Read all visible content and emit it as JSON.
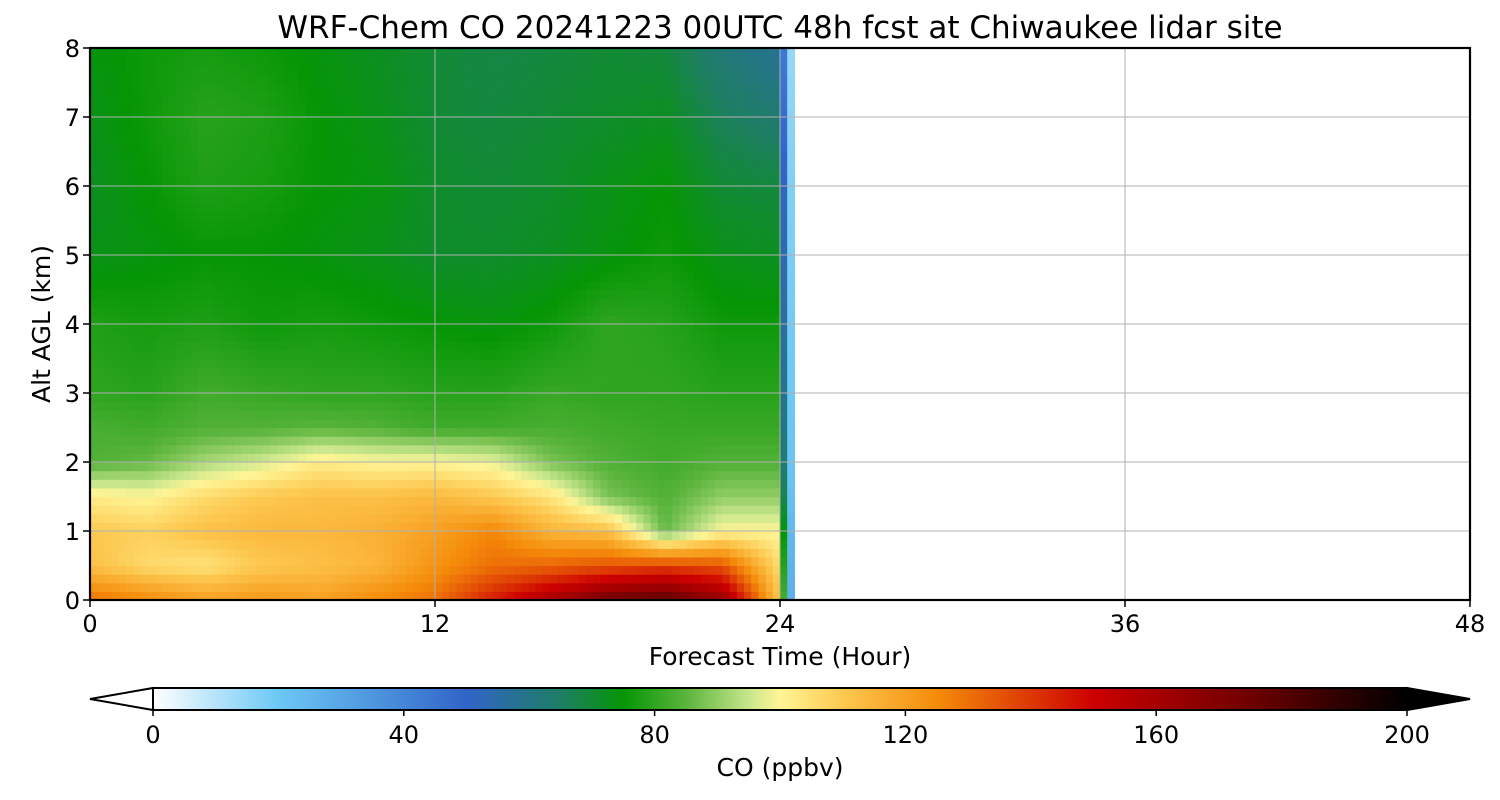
{
  "chart_data": {
    "type": "heatmap",
    "title": "WRF-Chem CO  20241223 00UTC 48h fcst at Chiwaukee lidar site",
    "xlabel": "Forecast Time (Hour)",
    "ylabel": "Alt AGL (km)",
    "xlim": [
      0,
      48
    ],
    "ylim": [
      0,
      8
    ],
    "x_ticks": [
      0,
      12,
      24,
      36,
      48
    ],
    "y_ticks": [
      0,
      1,
      2,
      3,
      4,
      5,
      6,
      7,
      8
    ],
    "grid": true,
    "data_extent_hours": [
      0,
      24.5
    ],
    "x": [
      0,
      2,
      4,
      6,
      8,
      10,
      12,
      14,
      16,
      18,
      20,
      22,
      24
    ],
    "altitudes_km": [
      0,
      0.5,
      1,
      1.5,
      2,
      2.5,
      3,
      4,
      5,
      6,
      7,
      8
    ],
    "co_ppbv": [
      [
        130,
        125,
        120,
        122,
        120,
        125,
        130,
        145,
        160,
        175,
        180,
        165,
        110
      ],
      [
        112,
        106,
        104,
        110,
        112,
        115,
        123,
        130,
        132,
        135,
        138,
        135,
        105
      ],
      [
        110,
        108,
        112,
        114,
        114,
        116,
        120,
        126,
        115,
        112,
        86,
        100,
        100
      ],
      [
        102,
        100,
        106,
        110,
        112,
        112,
        114,
        110,
        104,
        88,
        84,
        90,
        90
      ],
      [
        84,
        86,
        92,
        96,
        102,
        100,
        100,
        98,
        88,
        84,
        82,
        84,
        84
      ],
      [
        83,
        82,
        84,
        84,
        85,
        84,
        82,
        82,
        83,
        82,
        81,
        81,
        81
      ],
      [
        80,
        79,
        82,
        81,
        80,
        80,
        79,
        79,
        81,
        80,
        80,
        79,
        79
      ],
      [
        78,
        77,
        78,
        76,
        77,
        76,
        75,
        74,
        76,
        80,
        79,
        76,
        76
      ],
      [
        73,
        74,
        75,
        75,
        74,
        73,
        71,
        71,
        72,
        74,
        76,
        73,
        72
      ],
      [
        72,
        75,
        78,
        77,
        75,
        74,
        71,
        70,
        71,
        73,
        75,
        70,
        69
      ],
      [
        73,
        76,
        79,
        78,
        75,
        73,
        70,
        69,
        70,
        71,
        72,
        66,
        63
      ],
      [
        74,
        76,
        77,
        76,
        74,
        72,
        70,
        68,
        69,
        70,
        69,
        62,
        58
      ]
    ],
    "colorbar": {
      "label": "CO  (ppbv)",
      "min": 0,
      "max": 200,
      "ticks": [
        0,
        40,
        80,
        120,
        160,
        200
      ],
      "extend": "both",
      "stops": [
        {
          "v": 0,
          "color": "#ffffff"
        },
        {
          "v": 20,
          "color": "#6cc8f5"
        },
        {
          "v": 50,
          "color": "#3164c8"
        },
        {
          "v": 65,
          "color": "#1e7e64"
        },
        {
          "v": 75,
          "color": "#059605"
        },
        {
          "v": 85,
          "color": "#5ab43c"
        },
        {
          "v": 95,
          "color": "#c8e68c"
        },
        {
          "v": 100,
          "color": "#fff596"
        },
        {
          "v": 110,
          "color": "#fdc850"
        },
        {
          "v": 125,
          "color": "#f58c0a"
        },
        {
          "v": 150,
          "color": "#cd0000"
        },
        {
          "v": 175,
          "color": "#6e0000"
        },
        {
          "v": 200,
          "color": "#000000"
        }
      ]
    }
  }
}
